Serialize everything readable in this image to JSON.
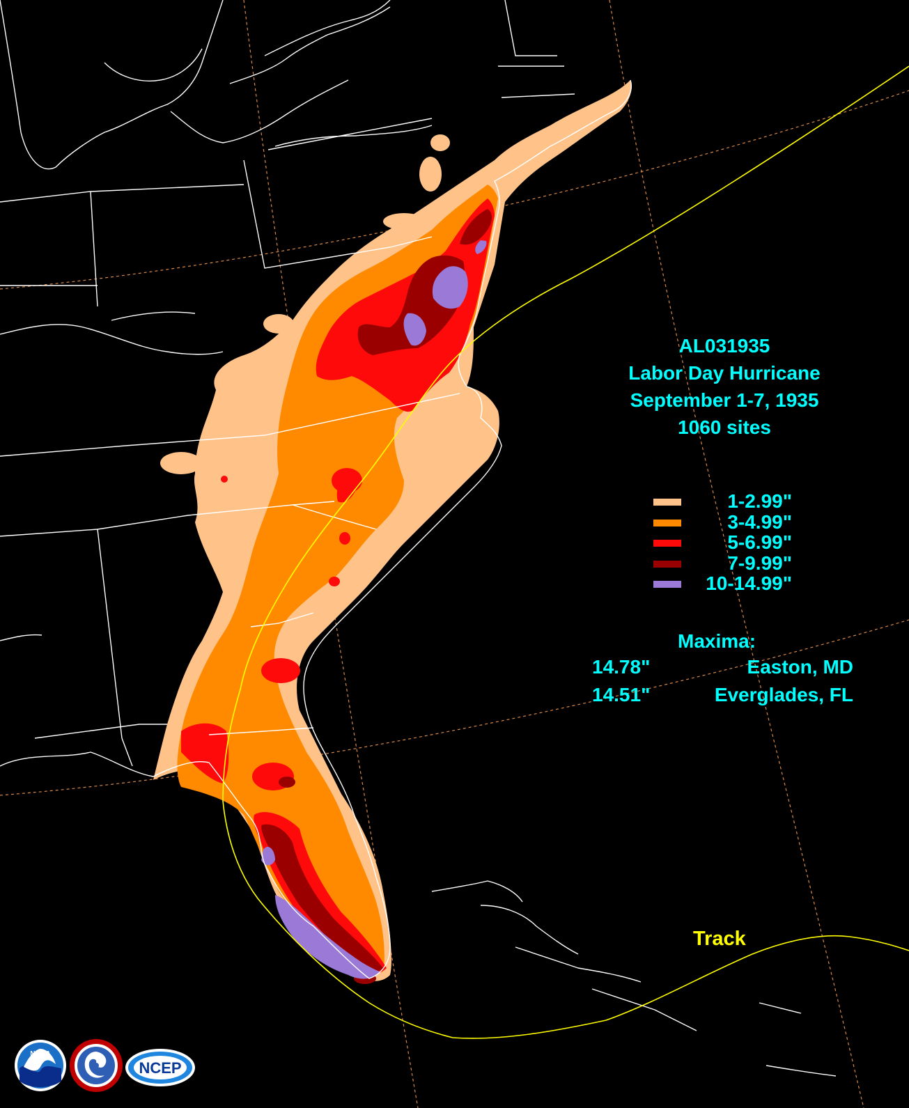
{
  "storm": {
    "id": "AL031935",
    "name": "Labor Day Hurricane",
    "dates": "September 1-7, 1935",
    "sites": "1060 sites"
  },
  "legend": {
    "items": [
      {
        "label": "1-2.99\"",
        "color": "#ffc38a"
      },
      {
        "label": "3-4.99\"",
        "color": "#ff8a00"
      },
      {
        "label": "5-6.99\"",
        "color": "#ff0a0a"
      },
      {
        "label": "7-9.99\"",
        "color": "#9b0000"
      },
      {
        "label": "10-14.99\"",
        "color": "#9a7ad6"
      }
    ]
  },
  "maxima": {
    "heading": "Maxima:",
    "rows": [
      {
        "value": "14.78\"",
        "location": "Easton, MD"
      },
      {
        "value": "14.51\"",
        "location": "Everglades, FL"
      }
    ]
  },
  "track": {
    "label": "Track",
    "color": "#ffff00"
  },
  "colors": {
    "background": "#000000",
    "borders": "#ffffff",
    "grid": "#d88a4a",
    "text": "#00ffff"
  },
  "logos": {
    "noaa": "NOAA",
    "nws": "NATIONAL WEATHER SERVICE",
    "ncep": "NCEP"
  }
}
